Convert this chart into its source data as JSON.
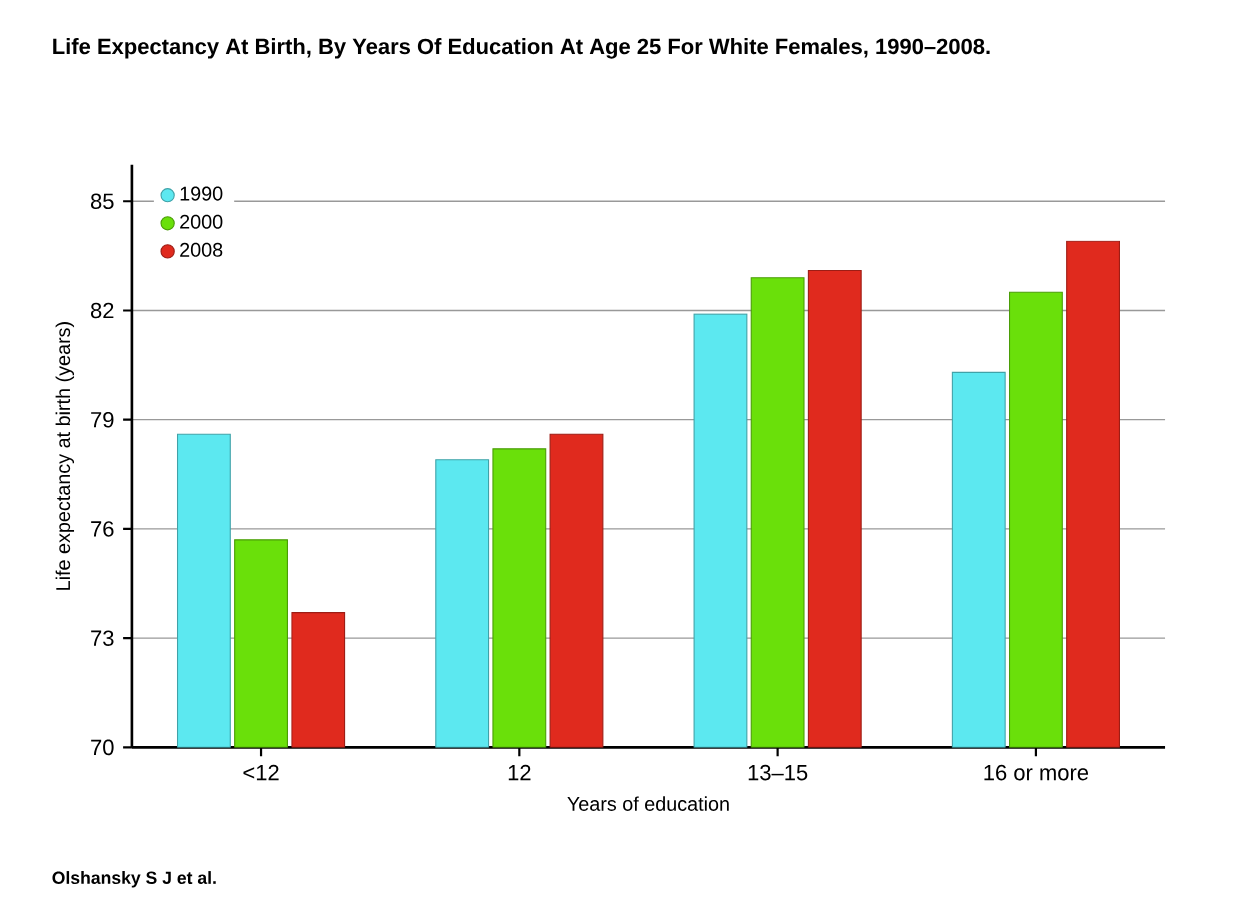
{
  "chart_data": {
    "type": "bar",
    "title": "Life Expectancy At Birth, By Years Of Education At Age 25 For White Females, 1990–2008.",
    "xlabel": "Years of education",
    "ylabel": "Life expectancy at birth (years)",
    "categories": [
      "<12",
      "12",
      "13–15",
      "16 or more"
    ],
    "series": [
      {
        "name": "1990",
        "color": "#5ce8f0",
        "values": [
          78.6,
          77.9,
          81.9,
          80.3
        ]
      },
      {
        "name": "2000",
        "color": "#6ae00a",
        "values": [
          75.7,
          78.2,
          82.9,
          82.5
        ]
      },
      {
        "name": "2008",
        "color": "#e02a1e",
        "values": [
          73.7,
          78.6,
          83.1,
          83.9
        ]
      }
    ],
    "ylim": [
      70,
      86
    ],
    "yticks": [
      70,
      73,
      76,
      79,
      82,
      85
    ],
    "grid": "y",
    "legend": "top left",
    "annotations": [
      "Olshansky S J et al."
    ]
  }
}
